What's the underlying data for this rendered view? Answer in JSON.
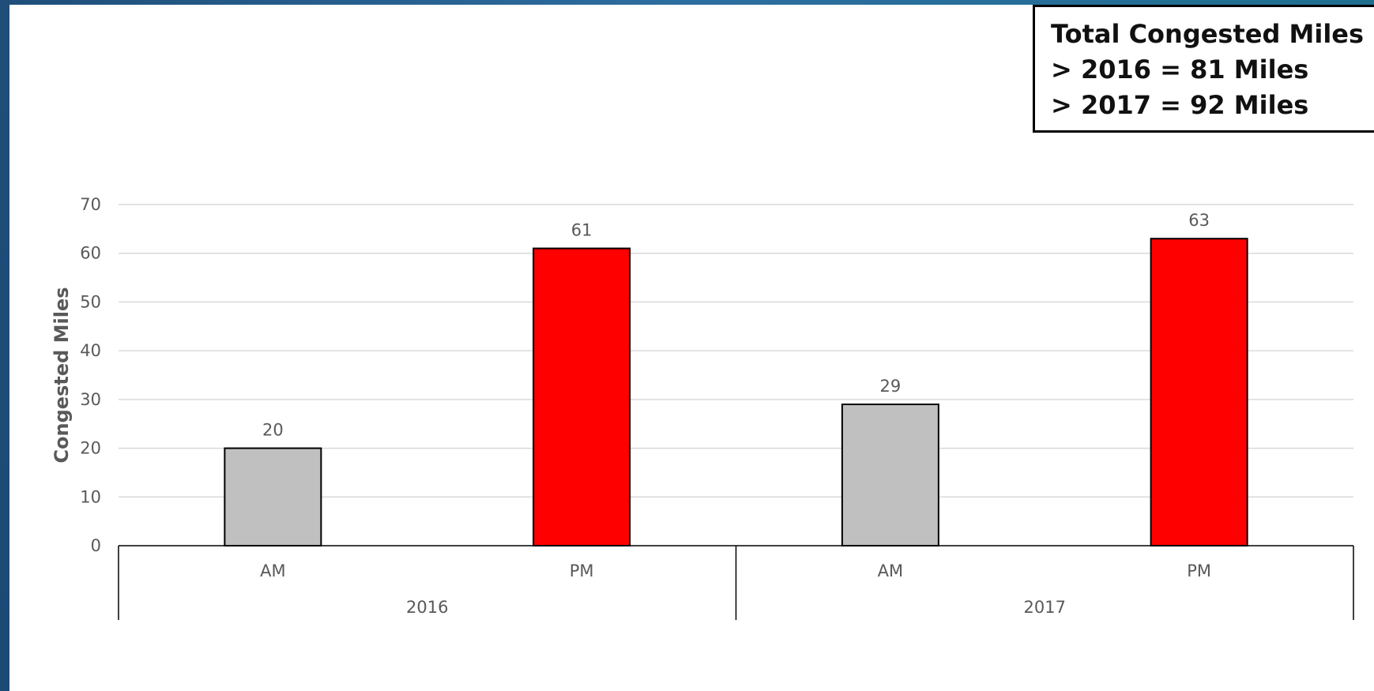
{
  "summary": {
    "title": "Total Congested Miles",
    "line_2016": "> 2016 = 81 Miles",
    "line_2017": "> 2017 = 92 Miles"
  },
  "colors": {
    "am": "#c0c0c0",
    "pm": "#ff0000"
  },
  "chart_data": {
    "type": "bar",
    "ylabel": "Congested Miles",
    "ylim": [
      0,
      70
    ],
    "yticks": [
      0,
      10,
      20,
      30,
      40,
      50,
      60,
      70
    ],
    "grid": true,
    "groups": [
      "2016",
      "2017"
    ],
    "categories": [
      "AM",
      "PM",
      "AM",
      "PM"
    ],
    "values": [
      20,
      61,
      29,
      63
    ],
    "value_labels": [
      "20",
      "61",
      "29",
      "63"
    ]
  }
}
